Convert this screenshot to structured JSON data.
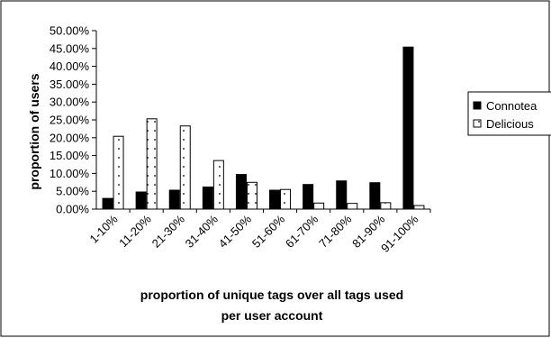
{
  "chart_data": {
    "type": "bar",
    "categories": [
      "1-10%",
      "11-20%",
      "21-30%",
      "31-40%",
      "41-50%",
      "51-60%",
      "61-70%",
      "71-80%",
      "81-90%",
      "91-100%"
    ],
    "series": [
      {
        "name": "Connotea",
        "values": [
          3.0,
          4.8,
          5.3,
          6.2,
          9.7,
          5.3,
          6.9,
          7.9,
          7.4,
          45.4
        ],
        "color": "#000000"
      },
      {
        "name": "Delicious",
        "values": [
          20.4,
          25.3,
          23.3,
          13.6,
          7.5,
          5.5,
          1.7,
          1.6,
          1.8,
          1.0
        ],
        "color": "#ffffff",
        "pattern": "dotted"
      }
    ],
    "title": "",
    "xlabel": "proportion of unique tags over all tags used per user account",
    "xlabel_lines": [
      "proportion of unique tags over all tags used",
      "per user account"
    ],
    "ylabel": "proportion of users",
    "ylim": [
      0,
      50
    ],
    "ytick_step": 5,
    "ytick_format": "percent_2dp",
    "grid": false,
    "legend_position": "right"
  }
}
